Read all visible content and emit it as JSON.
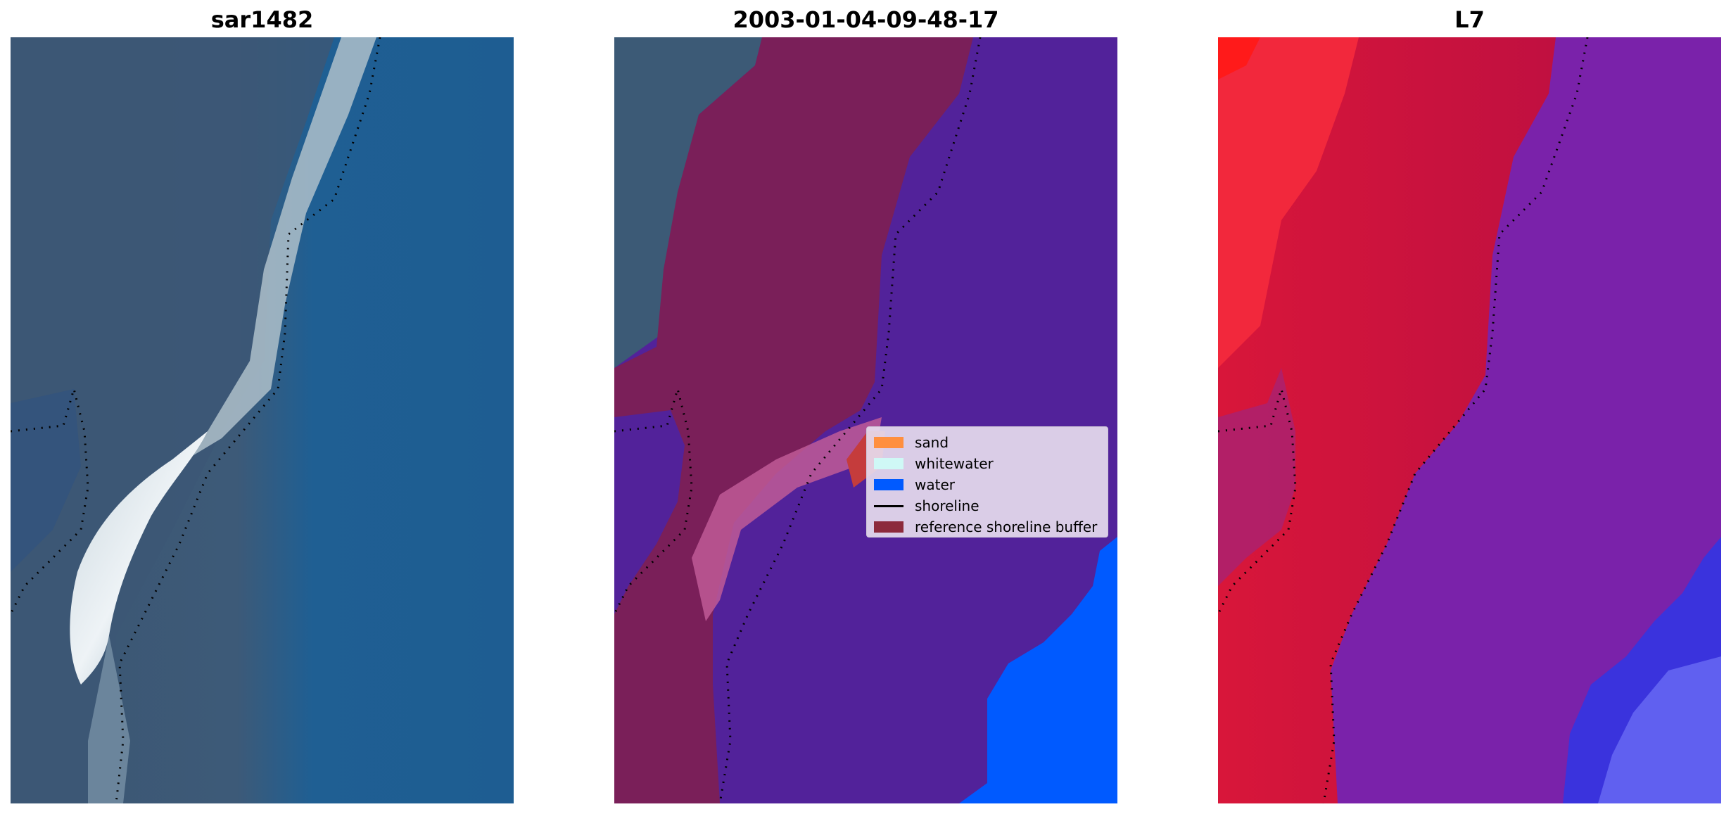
{
  "panels": [
    {
      "title": "sar1482"
    },
    {
      "title": "2003-01-04-09-48-17"
    },
    {
      "title": "L7"
    }
  ],
  "legend": {
    "items": [
      {
        "label": "sand",
        "type": "patch",
        "color": "#ff8f3f"
      },
      {
        "label": "whitewater",
        "type": "patch",
        "color": "#cff8f6"
      },
      {
        "label": "water",
        "type": "patch",
        "color": "#005aff"
      },
      {
        "label": "shoreline",
        "type": "line",
        "color": "#000000"
      },
      {
        "label": "reference shoreline buffer",
        "type": "patch",
        "color": "#8c2a3c"
      }
    ]
  },
  "colors": {
    "ocean_blue": "#1d5f95",
    "land_gray_blue": "#3d5a78",
    "classified_water_purple": "#52229a",
    "buffer_magenta": "#7a1f59",
    "water_blue": "#005aff",
    "nir_red": "#c5103f",
    "nir_purple": "#7a22aa"
  }
}
